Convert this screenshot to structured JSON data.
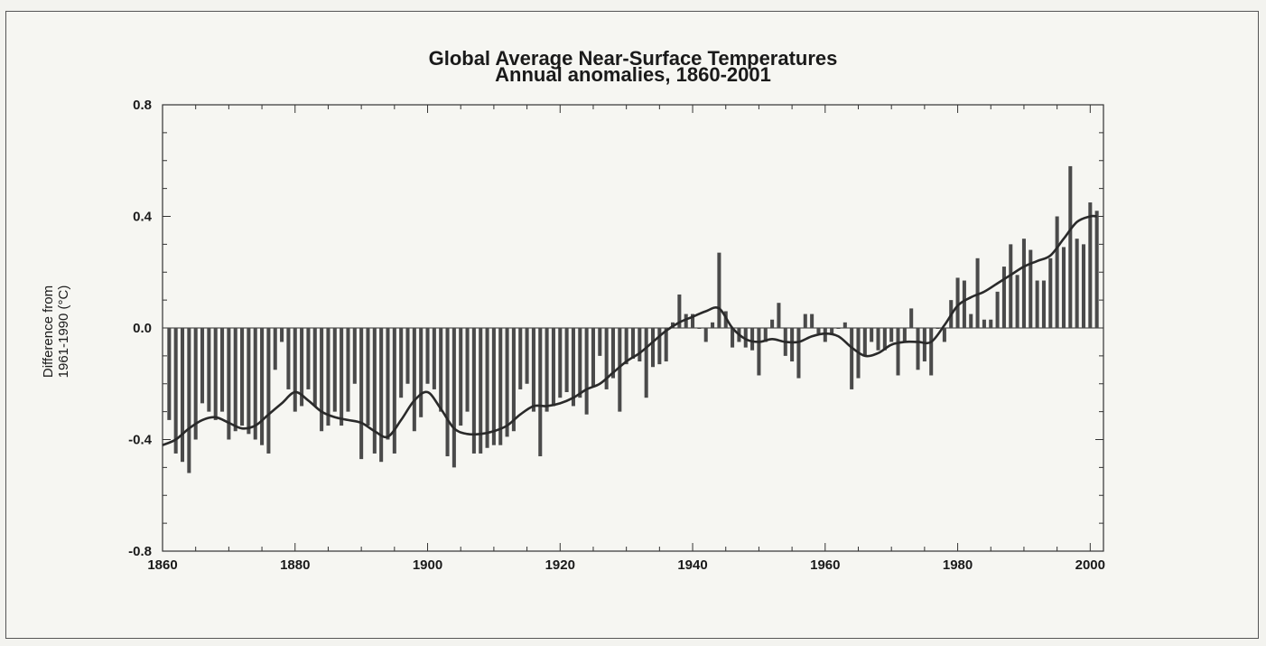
{
  "chart_data": {
    "type": "bar",
    "title_line1": "Global Average Near-Surface Temperatures",
    "title_line2": "Annual anomalies, 1860-2001",
    "xlabel": "",
    "ylabel_line1": "Difference from",
    "ylabel_line2": "1961-1990 (°C)",
    "xlim": [
      1860,
      2002
    ],
    "ylim": [
      -0.8,
      0.8
    ],
    "xticks": [
      1860,
      1880,
      1900,
      1920,
      1940,
      1960,
      1980,
      2000
    ],
    "xtick_labels": [
      "1860",
      "1880",
      "1900",
      "1920",
      "1940",
      "1960",
      "1980",
      "2000"
    ],
    "yticks": [
      -0.8,
      -0.4,
      0.0,
      0.4,
      0.8
    ],
    "ytick_labels": [
      "-0.8",
      "-0.4",
      "0.0",
      "0.4",
      "0.8"
    ],
    "grid": false,
    "bar_color": "#4a4a4a",
    "line_color": "#2a2a2a",
    "years": [
      1861,
      1862,
      1863,
      1864,
      1865,
      1866,
      1867,
      1868,
      1869,
      1870,
      1871,
      1872,
      1873,
      1874,
      1875,
      1876,
      1877,
      1878,
      1879,
      1880,
      1881,
      1882,
      1883,
      1884,
      1885,
      1886,
      1887,
      1888,
      1889,
      1890,
      1891,
      1892,
      1893,
      1894,
      1895,
      1896,
      1897,
      1898,
      1899,
      1900,
      1901,
      1902,
      1903,
      1904,
      1905,
      1906,
      1907,
      1908,
      1909,
      1910,
      1911,
      1912,
      1913,
      1914,
      1915,
      1916,
      1917,
      1918,
      1919,
      1920,
      1921,
      1922,
      1923,
      1924,
      1925,
      1926,
      1927,
      1928,
      1929,
      1930,
      1931,
      1932,
      1933,
      1934,
      1935,
      1936,
      1937,
      1938,
      1939,
      1940,
      1941,
      1942,
      1943,
      1944,
      1945,
      1946,
      1947,
      1948,
      1949,
      1950,
      1951,
      1952,
      1953,
      1954,
      1955,
      1956,
      1957,
      1958,
      1959,
      1960,
      1961,
      1962,
      1963,
      1964,
      1965,
      1966,
      1967,
      1968,
      1969,
      1970,
      1971,
      1972,
      1973,
      1974,
      1975,
      1976,
      1977,
      1978,
      1979,
      1980,
      1981,
      1982,
      1983,
      1984,
      1985,
      1986,
      1987,
      1988,
      1989,
      1990,
      1991,
      1992,
      1993,
      1994,
      1995,
      1996,
      1997,
      1998,
      1999,
      2000,
      2001
    ],
    "annual_anomalies": [
      -0.33,
      -0.45,
      -0.48,
      -0.52,
      -0.4,
      -0.27,
      -0.3,
      -0.33,
      -0.3,
      -0.4,
      -0.37,
      -0.35,
      -0.38,
      -0.4,
      -0.42,
      -0.45,
      -0.15,
      -0.05,
      -0.22,
      -0.3,
      -0.28,
      -0.22,
      -0.28,
      -0.37,
      -0.35,
      -0.3,
      -0.35,
      -0.3,
      -0.2,
      -0.47,
      -0.35,
      -0.45,
      -0.48,
      -0.4,
      -0.45,
      -0.25,
      -0.2,
      -0.37,
      -0.32,
      -0.2,
      -0.22,
      -0.3,
      -0.46,
      -0.5,
      -0.35,
      -0.3,
      -0.45,
      -0.45,
      -0.43,
      -0.42,
      -0.42,
      -0.39,
      -0.37,
      -0.22,
      -0.2,
      -0.3,
      -0.46,
      -0.3,
      -0.28,
      -0.25,
      -0.23,
      -0.28,
      -0.25,
      -0.31,
      -0.21,
      -0.1,
      -0.22,
      -0.18,
      -0.3,
      -0.13,
      -0.11,
      -0.12,
      -0.25,
      -0.14,
      -0.13,
      -0.12,
      0.02,
      0.12,
      0.05,
      0.05,
      0.0,
      -0.05,
      0.02,
      0.27,
      0.06,
      -0.07,
      -0.05,
      -0.07,
      -0.08,
      -0.17,
      -0.05,
      0.03,
      0.09,
      -0.1,
      -0.12,
      -0.18,
      0.05,
      0.05,
      -0.02,
      -0.05,
      -0.02,
      0.0,
      0.02,
      -0.22,
      -0.18,
      -0.1,
      -0.05,
      -0.08,
      -0.08,
      -0.05,
      -0.17,
      -0.05,
      0.07,
      -0.15,
      -0.12,
      -0.17,
      0.0,
      -0.05,
      0.1,
      0.18,
      0.17,
      0.05,
      0.25,
      0.03,
      0.03,
      0.13,
      0.22,
      0.3,
      0.19,
      0.32,
      0.28,
      0.17,
      0.17,
      0.25,
      0.4,
      0.29,
      0.58,
      0.32,
      0.3,
      0.45,
      0.42
    ],
    "smoothed_years": [
      1860,
      1862,
      1864,
      1866,
      1868,
      1870,
      1872,
      1874,
      1876,
      1878,
      1880,
      1882,
      1884,
      1886,
      1888,
      1890,
      1892,
      1894,
      1896,
      1898,
      1900,
      1902,
      1904,
      1906,
      1908,
      1910,
      1912,
      1914,
      1916,
      1918,
      1920,
      1922,
      1924,
      1926,
      1928,
      1930,
      1932,
      1934,
      1936,
      1938,
      1940,
      1942,
      1944,
      1946,
      1948,
      1950,
      1952,
      1954,
      1956,
      1958,
      1960,
      1962,
      1964,
      1966,
      1968,
      1970,
      1972,
      1974,
      1976,
      1978,
      1980,
      1982,
      1984,
      1986,
      1988,
      1990,
      1992,
      1994,
      1996,
      1998,
      2000,
      2001
    ],
    "smoothed_values": [
      -0.42,
      -0.4,
      -0.36,
      -0.33,
      -0.32,
      -0.34,
      -0.36,
      -0.35,
      -0.31,
      -0.27,
      -0.23,
      -0.26,
      -0.3,
      -0.32,
      -0.33,
      -0.34,
      -0.37,
      -0.39,
      -0.33,
      -0.26,
      -0.23,
      -0.29,
      -0.36,
      -0.38,
      -0.38,
      -0.37,
      -0.35,
      -0.31,
      -0.28,
      -0.28,
      -0.27,
      -0.25,
      -0.22,
      -0.2,
      -0.16,
      -0.12,
      -0.09,
      -0.05,
      -0.01,
      0.02,
      0.04,
      0.06,
      0.07,
      0.0,
      -0.04,
      -0.05,
      -0.04,
      -0.05,
      -0.05,
      -0.03,
      -0.02,
      -0.03,
      -0.07,
      -0.1,
      -0.09,
      -0.06,
      -0.05,
      -0.05,
      -0.05,
      0.01,
      0.08,
      0.11,
      0.13,
      0.16,
      0.19,
      0.22,
      0.24,
      0.26,
      0.32,
      0.38,
      0.4,
      0.4
    ]
  }
}
